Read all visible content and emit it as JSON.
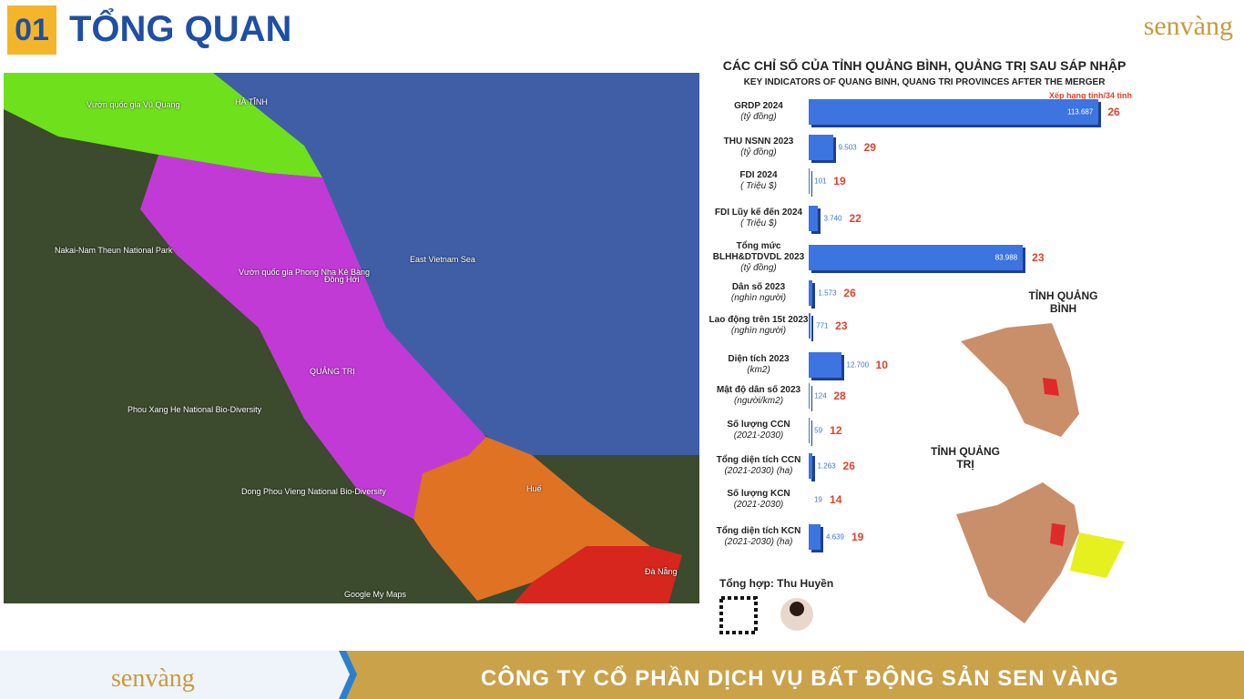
{
  "header": {
    "number": "01",
    "title": "TỔNG QUAN",
    "logo": "senvàng"
  },
  "chart_data": {
    "type": "hbar",
    "title": "CÁC CHỈ SỐ CỦA TỈNH QUẢNG BÌNH, QUẢNG TRỊ  SAU SÁP NHẬP",
    "subtitle": "KEY INDICATORS OF QUANG BINH, QUANG TRI  PROVINCES AFTER THE MERGER",
    "rank_title": "Xếp hạng tỉnh/34 tỉnh",
    "categories": [
      "GRDP 2024",
      "THU NSNN 2023",
      "FDI 2024",
      "FDI Lũy kế đến 2024",
      "Tổng mức BLHH&DTDVDL 2023",
      "Dân số 2023",
      "Lao động trên 15t 2023",
      "Diện tích 2023",
      "Mật độ dân số 2023",
      "Số lượng CCN",
      "Tổng diện tích CCN",
      "Số lượng KCN",
      "Tổng diện tích KCN"
    ],
    "units": [
      "(tỷ đồng)",
      "(tỷ đồng)",
      "( Triệu $)",
      "( Triệu $)",
      "(tỷ đồng)",
      "(nghìn người)",
      "(nghìn người)",
      "(km2)",
      "(người/km2)",
      "(2021-2030)",
      "(2021-2030) (ha)",
      "(2021-2030)",
      "(2021-2030) (ha)"
    ],
    "values": [
      113687,
      9503,
      101,
      3740,
      83988,
      1573,
      771,
      12700,
      124,
      59,
      1263,
      19,
      4639
    ],
    "value_labels": [
      "113.687",
      "9.503",
      "101",
      "3.740",
      "83.988",
      "1.573",
      "771",
      "12.700",
      "124",
      "59",
      "1.263",
      "19",
      "4.639"
    ],
    "ranks": [
      26,
      29,
      19,
      22,
      23,
      26,
      23,
      10,
      28,
      12,
      26,
      14,
      19
    ],
    "color": "#3c74e0",
    "xlim": [
      0,
      125000
    ]
  },
  "province_maps": {
    "quang_binh": "TỈNH QUẢNG BÌNH",
    "quang_tri": "TỈNH QUẢNG TRỊ"
  },
  "author": "Tổng hợp: Thu Huyền",
  "map": {
    "labels": [
      "HÀ TĨNH",
      "Vườn quốc gia Vũ Quang",
      "Nakai-Nam Theun National Park",
      "Vườn quốc gia Phong Nha Kẻ Bàng",
      "Đồng Hới",
      "QUẢNG TRỊ",
      "East Vietnam Sea",
      "Phou Xang He National Bio-Diversity",
      "Huế",
      "Đà Nẵng",
      "Dong Phou Vieng National Bio-Diversity",
      "Google My Maps"
    ]
  },
  "footer": {
    "company": "CÔNG TY CỔ PHẦN DỊCH VỤ BẤT ĐỘNG SẢN SEN VÀNG",
    "logo": "senvàng"
  }
}
